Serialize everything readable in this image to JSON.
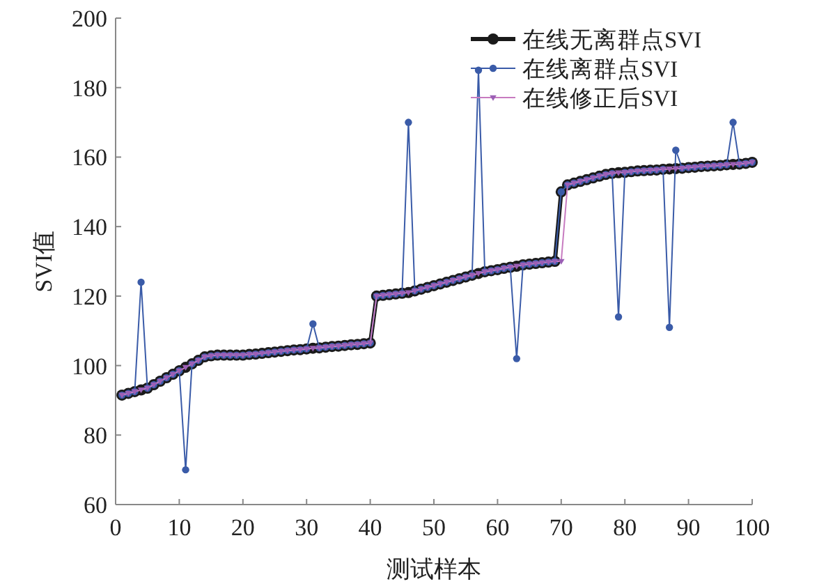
{
  "chart_data": {
    "type": "line",
    "xlabel": "测试样本",
    "ylabel": "SVI值",
    "xlim": [
      0,
      100
    ],
    "xticks": [
      0,
      10,
      20,
      30,
      40,
      50,
      60,
      70,
      80,
      90,
      100
    ],
    "ylim": [
      60,
      200
    ],
    "yticks": [
      60,
      80,
      100,
      120,
      140,
      160,
      180,
      200
    ],
    "legend": "top right",
    "grid": false,
    "x": [
      1,
      2,
      3,
      4,
      5,
      6,
      7,
      8,
      9,
      10,
      11,
      12,
      13,
      14,
      15,
      16,
      17,
      18,
      19,
      20,
      21,
      22,
      23,
      24,
      25,
      26,
      27,
      28,
      29,
      30,
      31,
      32,
      33,
      34,
      35,
      36,
      37,
      38,
      39,
      40,
      41,
      42,
      43,
      44,
      45,
      46,
      47,
      48,
      49,
      50,
      51,
      52,
      53,
      54,
      55,
      56,
      57,
      58,
      59,
      60,
      61,
      62,
      63,
      64,
      65,
      66,
      67,
      68,
      69,
      70,
      71,
      72,
      73,
      74,
      75,
      76,
      77,
      78,
      79,
      80,
      81,
      82,
      83,
      84,
      85,
      86,
      87,
      88,
      89,
      90,
      91,
      92,
      93,
      94,
      95,
      96,
      97,
      98,
      99,
      100
    ],
    "series": [
      {
        "name": "在线无离群点SVI",
        "color": "#1a1a1a",
        "marker": "circle",
        "values": [
          91.5,
          92,
          92.5,
          93,
          93.5,
          94.5,
          95.5,
          96.5,
          97.5,
          98.5,
          99.5,
          100.5,
          101.5,
          102.5,
          102.8,
          103,
          103,
          103,
          103,
          103,
          103.2,
          103.3,
          103.5,
          103.7,
          103.9,
          104.1,
          104.3,
          104.5,
          104.6,
          104.8,
          105,
          105.1,
          105.3,
          105.5,
          105.6,
          105.8,
          106,
          106.1,
          106.3,
          106.5,
          120,
          120.2,
          120.4,
          120.6,
          120.8,
          121,
          121.5,
          122,
          122.5,
          123,
          123.5,
          124,
          124.5,
          125,
          125.5,
          126,
          126.5,
          127,
          127.3,
          127.6,
          128,
          128.3,
          128.6,
          129,
          129.2,
          129.4,
          129.6,
          129.8,
          130,
          150,
          152,
          152.5,
          153,
          153.5,
          154,
          154.5,
          155,
          155.3,
          155.5,
          155.6,
          155.8,
          156,
          156.1,
          156.2,
          156.3,
          156.5,
          156.6,
          156.7,
          156.8,
          157,
          157.1,
          157.3,
          157.4,
          157.5,
          157.6,
          157.8,
          157.9,
          158,
          158.2,
          158.5
        ]
      },
      {
        "name": "在线离群点SVI",
        "color": "#3a5ba8",
        "marker": "circle",
        "values": [
          91.5,
          92,
          92.5,
          124,
          93.5,
          94.5,
          95.5,
          96.5,
          97.5,
          98.5,
          70,
          100.5,
          101.5,
          102.5,
          102.8,
          103,
          103,
          103,
          103,
          103,
          103.2,
          103.3,
          103.5,
          103.7,
          103.9,
          104.1,
          104.3,
          104.5,
          104.6,
          104.8,
          112,
          105.1,
          105.3,
          105.5,
          105.6,
          105.8,
          106,
          106.1,
          106.3,
          106.5,
          120,
          120.2,
          120.4,
          120.6,
          120.8,
          170,
          121.5,
          122,
          122.5,
          123,
          123.5,
          124,
          124.5,
          125,
          125.5,
          126,
          185,
          127,
          127.3,
          127.6,
          128,
          128.3,
          102,
          129,
          129.2,
          129.4,
          129.6,
          129.8,
          130,
          150,
          152,
          152.5,
          153,
          153.5,
          154,
          154.5,
          155,
          155.3,
          114,
          155.6,
          155.8,
          156,
          156.1,
          156.2,
          156.3,
          156.5,
          111,
          162,
          156.8,
          157,
          157.1,
          157.3,
          157.4,
          157.5,
          157.6,
          157.8,
          170,
          158,
          158.2,
          158.5
        ]
      },
      {
        "name": "在线修正后SVI",
        "color": "#c77bc0",
        "marker": "triangle",
        "values": [
          91.5,
          92,
          92.5,
          93,
          93.5,
          94.5,
          95.5,
          96.5,
          97.5,
          98.5,
          99.5,
          100.5,
          101.5,
          102.5,
          102.8,
          103,
          103,
          103,
          103,
          103,
          103.2,
          103.3,
          103.5,
          103.7,
          103.9,
          104.1,
          104.3,
          104.5,
          104.6,
          104.8,
          105,
          105.1,
          105.3,
          105.5,
          105.6,
          105.8,
          106,
          106.1,
          106.3,
          106.5,
          120,
          120.2,
          120.4,
          120.6,
          120.8,
          121,
          121.5,
          122,
          122.5,
          123,
          123.5,
          124,
          124.5,
          125,
          125.5,
          126,
          126.5,
          127,
          127.3,
          127.6,
          128,
          128.3,
          128.6,
          129,
          129.2,
          129.4,
          129.6,
          129.8,
          130,
          130,
          152,
          152.5,
          153,
          153.5,
          154,
          154.5,
          155,
          155.3,
          155.5,
          155.6,
          155.8,
          156,
          156.1,
          156.2,
          156.3,
          156.5,
          156.6,
          156.7,
          156.8,
          157,
          157.1,
          157.3,
          157.4,
          157.5,
          157.6,
          157.8,
          157.9,
          158,
          158.2,
          158.5
        ]
      }
    ]
  }
}
